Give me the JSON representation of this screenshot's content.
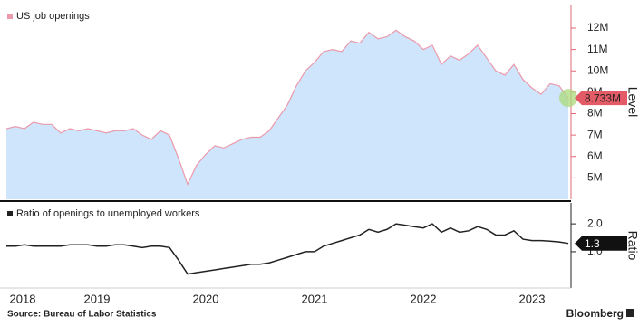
{
  "chart_data": [
    {
      "type": "area",
      "categories": [
        "2018",
        null,
        null,
        null,
        null,
        null,
        null,
        null,
        null,
        null,
        "2019",
        null,
        null,
        null,
        null,
        null,
        null,
        null,
        null,
        null,
        null,
        null,
        "2020",
        null,
        null,
        null,
        null,
        null,
        null,
        null,
        null,
        null,
        null,
        null,
        "2021",
        null,
        null,
        null,
        null,
        null,
        null,
        null,
        null,
        null,
        null,
        null,
        "2022",
        null,
        null,
        null,
        null,
        null,
        null,
        null,
        null,
        null,
        null,
        null,
        "2023",
        null,
        null,
        null,
        null
      ],
      "series": [
        {
          "name": "US job openings",
          "color": "#eb9aab",
          "fill": "#cfe5fb",
          "values": [
            7.3,
            7.4,
            7.3,
            7.6,
            7.5,
            7.5,
            7.1,
            7.3,
            7.2,
            7.3,
            7.2,
            7.1,
            7.2,
            7.2,
            7.3,
            7.0,
            6.8,
            7.2,
            7.0,
            5.9,
            4.7,
            5.6,
            6.1,
            6.5,
            6.4,
            6.6,
            6.8,
            6.9,
            6.9,
            7.2,
            7.8,
            8.4,
            9.3,
            10.0,
            10.4,
            10.9,
            11.0,
            10.9,
            11.4,
            11.3,
            11.8,
            11.5,
            11.6,
            11.9,
            11.6,
            11.4,
            11.0,
            11.2,
            10.3,
            10.7,
            10.5,
            10.8,
            11.2,
            10.6,
            10.0,
            9.8,
            10.3,
            9.6,
            9.2,
            8.9,
            9.4,
            9.3,
            8.733
          ],
          "value_labels": [
            null,
            null,
            null,
            null,
            null,
            null,
            null,
            null,
            null,
            null,
            null,
            null,
            null,
            null,
            null,
            null,
            null,
            null,
            null,
            null,
            null,
            null,
            null,
            null,
            null,
            null,
            null,
            null,
            null,
            null,
            null,
            null,
            null,
            null,
            null,
            null,
            null,
            null,
            null,
            null,
            null,
            null,
            null,
            null,
            null,
            null,
            null,
            null,
            null,
            null,
            null,
            null,
            null,
            null,
            null,
            null,
            null,
            null,
            null,
            null,
            null,
            null,
            "8.733M"
          ]
        }
      ],
      "ylim": [
        4,
        13.1
      ],
      "yticks": [
        {
          "value": 5,
          "label": "5M"
        },
        {
          "value": 6,
          "label": "6M"
        },
        {
          "value": 7,
          "label": "7M"
        },
        {
          "value": 8,
          "label": "8M"
        },
        {
          "value": 9,
          "label": "9M"
        },
        {
          "value": 10,
          "label": "10M"
        },
        {
          "value": 11,
          "label": "11M"
        },
        {
          "value": 12,
          "label": "12M"
        }
      ],
      "y_label": "Level",
      "axis_color": "#e06b78"
    },
    {
      "type": "line",
      "series": [
        {
          "name": "Ratio of openings to unemployed workers",
          "color": "#222222",
          "values": [
            1.2,
            1.2,
            1.25,
            1.2,
            1.2,
            1.2,
            1.2,
            1.25,
            1.25,
            1.25,
            1.2,
            1.2,
            1.25,
            1.25,
            1.2,
            1.15,
            1.2,
            1.2,
            1.15,
            0.7,
            0.2,
            0.25,
            0.3,
            0.35,
            0.4,
            0.45,
            0.5,
            0.55,
            0.55,
            0.6,
            0.7,
            0.8,
            0.9,
            1.0,
            1.0,
            1.2,
            1.3,
            1.4,
            1.5,
            1.6,
            1.8,
            1.7,
            1.8,
            2.0,
            1.95,
            1.9,
            1.85,
            2.0,
            1.7,
            1.85,
            1.7,
            1.75,
            1.9,
            1.8,
            1.6,
            1.6,
            1.75,
            1.45,
            1.4,
            1.4,
            1.38,
            1.35,
            1.3
          ]
        }
      ],
      "ylim": [
        -0.3,
        2.75
      ],
      "yticks": [
        {
          "value": 1,
          "label": "1.0"
        },
        {
          "value": 2,
          "label": "2.0"
        }
      ],
      "y_label": "Ratio",
      "axis_color": "#222222"
    }
  ],
  "footer": {
    "source": "Source: Bureau of Labor Statistics",
    "brand": "Bloomberg"
  }
}
